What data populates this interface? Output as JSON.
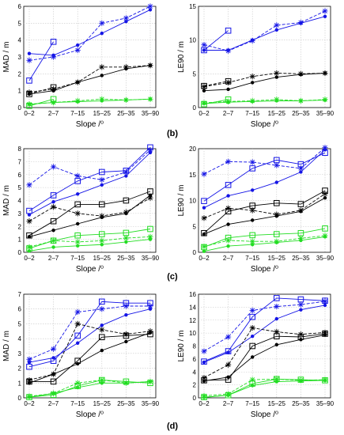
{
  "panel_labels": [
    "(b)",
    "(c)",
    "(d)"
  ],
  "colors": {
    "blue": "#1515e6",
    "black": "#000000",
    "green": "#22dd22"
  },
  "chart_data": [
    {
      "type": "line",
      "panel": "(b)",
      "xlabel": "Slope /⁰",
      "ylabel": "MAD / m",
      "categories": [
        "0–2",
        "2–7",
        "7–15",
        "15–25",
        "25–35",
        "35–90"
      ],
      "ylim": [
        0,
        6
      ],
      "yticks": [
        0,
        1,
        2,
        3,
        4,
        5,
        6
      ],
      "grid": true,
      "series": [
        {
          "color": "blue",
          "marker": "square",
          "dash": "solid",
          "values": [
            1.6,
            3.9,
            null,
            null,
            null,
            null
          ]
        },
        {
          "color": "blue",
          "marker": "dot",
          "dash": "solid",
          "values": [
            3.2,
            3.1,
            3.7,
            4.4,
            5.1,
            5.8
          ]
        },
        {
          "color": "blue",
          "marker": "star",
          "dash": "dashed",
          "values": [
            2.8,
            3.0,
            3.4,
            5.0,
            5.3,
            6.0
          ]
        },
        {
          "color": "black",
          "marker": "square",
          "dash": "dashed",
          "values": [
            0.8,
            1.2,
            null,
            null,
            null,
            null
          ]
        },
        {
          "color": "black",
          "marker": "dot",
          "dash": "solid",
          "values": [
            0.8,
            1.0,
            1.5,
            1.9,
            2.3,
            2.5
          ]
        },
        {
          "color": "black",
          "marker": "star",
          "dash": "dashed",
          "values": [
            0.9,
            1.1,
            1.5,
            2.4,
            2.4,
            2.5
          ]
        },
        {
          "color": "green",
          "marker": "square",
          "dash": "solid",
          "values": [
            0.1,
            0.5,
            null,
            null,
            null,
            null
          ]
        },
        {
          "color": "green",
          "marker": "dot",
          "dash": "solid",
          "values": [
            0.2,
            0.3,
            0.35,
            0.4,
            0.45,
            0.5
          ]
        },
        {
          "color": "green",
          "marker": "star",
          "dash": "dashed",
          "values": [
            0.2,
            0.3,
            0.4,
            0.5,
            0.45,
            0.5
          ]
        }
      ]
    },
    {
      "type": "line",
      "panel": "(b)",
      "xlabel": "Slope /⁰",
      "ylabel": "LE90 / m",
      "categories": [
        "0–2",
        "2–7",
        "7–15",
        "15–25",
        "25–35",
        "35–90"
      ],
      "ylim": [
        0,
        15
      ],
      "yticks": [
        0,
        5,
        10,
        15
      ],
      "grid": true,
      "series": [
        {
          "color": "blue",
          "marker": "square",
          "dash": "solid",
          "values": [
            8.5,
            11.4,
            null,
            null,
            null,
            null
          ]
        },
        {
          "color": "blue",
          "marker": "dot",
          "dash": "solid",
          "values": [
            8.5,
            8.5,
            10.0,
            11.5,
            12.5,
            13.5
          ]
        },
        {
          "color": "blue",
          "marker": "star",
          "dash": "dashed",
          "values": [
            9.3,
            8.4,
            9.9,
            12.2,
            12.6,
            14.3
          ]
        },
        {
          "color": "black",
          "marker": "square",
          "dash": "dashed",
          "values": [
            3.2,
            3.9,
            null,
            null,
            null,
            null
          ]
        },
        {
          "color": "black",
          "marker": "dot",
          "dash": "solid",
          "values": [
            2.5,
            2.7,
            3.7,
            4.5,
            4.9,
            5.1
          ]
        },
        {
          "color": "black",
          "marker": "star",
          "dash": "dashed",
          "values": [
            3.1,
            3.7,
            4.6,
            5.1,
            5.0,
            5.1
          ]
        },
        {
          "color": "green",
          "marker": "square",
          "dash": "solid",
          "values": [
            0.5,
            1.2,
            null,
            null,
            null,
            null
          ]
        },
        {
          "color": "green",
          "marker": "dot",
          "dash": "solid",
          "values": [
            0.6,
            0.8,
            0.9,
            1.0,
            1.0,
            1.1
          ]
        },
        {
          "color": "green",
          "marker": "star",
          "dash": "dashed",
          "values": [
            0.7,
            0.9,
            1.0,
            1.2,
            1.0,
            1.2
          ]
        }
      ]
    },
    {
      "type": "line",
      "panel": "(c)",
      "xlabel": "Slope /⁰",
      "ylabel": "MAD / m",
      "categories": [
        "0–2",
        "2–7",
        "7–15",
        "15–25",
        "25–35",
        "35–90"
      ],
      "ylim": [
        0,
        8
      ],
      "yticks": [
        0,
        1,
        2,
        3,
        4,
        5,
        6,
        7,
        8
      ],
      "grid": true,
      "series": [
        {
          "color": "blue",
          "marker": "square",
          "dash": "solid",
          "values": [
            3.2,
            4.4,
            5.5,
            6.2,
            6.3,
            8.1
          ]
        },
        {
          "color": "blue",
          "marker": "dot",
          "dash": "solid",
          "values": [
            2.9,
            3.9,
            4.5,
            5.2,
            5.9,
            7.7
          ]
        },
        {
          "color": "blue",
          "marker": "star",
          "dash": "dashed",
          "values": [
            5.2,
            6.6,
            5.9,
            5.6,
            6.2,
            7.9
          ]
        },
        {
          "color": "black",
          "marker": "square",
          "dash": "solid",
          "values": [
            1.3,
            2.4,
            3.7,
            3.7,
            4.0,
            4.7
          ]
        },
        {
          "color": "black",
          "marker": "dot",
          "dash": "solid",
          "values": [
            1.2,
            1.7,
            2.2,
            2.7,
            3.0,
            4.4
          ]
        },
        {
          "color": "black",
          "marker": "star",
          "dash": "dashed",
          "values": [
            2.4,
            3.5,
            3.0,
            2.8,
            3.1,
            4.2
          ]
        },
        {
          "color": "green",
          "marker": "square",
          "dash": "solid",
          "values": [
            0.3,
            0.9,
            1.3,
            1.4,
            1.5,
            1.8
          ]
        },
        {
          "color": "green",
          "marker": "dot",
          "dash": "solid",
          "values": [
            0.1,
            0.4,
            0.5,
            0.6,
            0.8,
            1.0
          ]
        },
        {
          "color": "green",
          "marker": "star",
          "dash": "dashed",
          "values": [
            0.4,
            0.9,
            0.8,
            0.9,
            1.1,
            1.2
          ]
        }
      ]
    },
    {
      "type": "line",
      "panel": "(c)",
      "xlabel": "Slope /⁰",
      "ylabel": "LE90 / m",
      "categories": [
        "0–2",
        "2–7",
        "7–15",
        "15–25",
        "25–35",
        "35–90"
      ],
      "ylim": [
        0,
        20
      ],
      "yticks": [
        0,
        5,
        10,
        15,
        20
      ],
      "grid": true,
      "series": [
        {
          "color": "blue",
          "marker": "square",
          "dash": "solid",
          "values": [
            9.9,
            13.0,
            16.2,
            17.8,
            17.0,
            19.2
          ]
        },
        {
          "color": "blue",
          "marker": "dot",
          "dash": "solid",
          "values": [
            8.6,
            10.9,
            12.0,
            13.5,
            15.5,
            19.8
          ]
        },
        {
          "color": "blue",
          "marker": "star",
          "dash": "dashed",
          "values": [
            15.1,
            17.5,
            17.4,
            16.8,
            16.2,
            20.2
          ]
        },
        {
          "color": "black",
          "marker": "square",
          "dash": "solid",
          "values": [
            3.7,
            7.9,
            9.0,
            9.5,
            9.3,
            11.9
          ]
        },
        {
          "color": "black",
          "marker": "dot",
          "dash": "solid",
          "values": [
            3.5,
            5.4,
            6.2,
            7.0,
            7.9,
            10.5
          ]
        },
        {
          "color": "black",
          "marker": "star",
          "dash": "dashed",
          "values": [
            6.6,
            8.5,
            8.1,
            7.3,
            8.1,
            11.3
          ]
        },
        {
          "color": "green",
          "marker": "square",
          "dash": "solid",
          "values": [
            1.0,
            2.8,
            3.3,
            3.5,
            3.7,
            4.6
          ]
        },
        {
          "color": "green",
          "marker": "dot",
          "dash": "solid",
          "values": [
            0.2,
            1.2,
            1.5,
            1.9,
            2.3,
            3.0
          ]
        },
        {
          "color": "green",
          "marker": "star",
          "dash": "dashed",
          "values": [
            1.1,
            2.3,
            2.1,
            2.1,
            2.7,
            3.2
          ]
        }
      ]
    },
    {
      "type": "line",
      "panel": "(d)",
      "xlabel": "Slope /⁰",
      "ylabel": "MAD / m",
      "categories": [
        "0–2",
        "2–7",
        "7–15",
        "15–25",
        "25–35",
        "35–90"
      ],
      "ylim": [
        0,
        7
      ],
      "yticks": [
        0,
        1,
        2,
        3,
        4,
        5,
        6,
        7
      ],
      "grid": true,
      "series": [
        {
          "color": "blue",
          "marker": "square",
          "dash": "solid",
          "values": [
            2.1,
            2.5,
            4.2,
            6.5,
            6.4,
            6.4
          ]
        },
        {
          "color": "blue",
          "marker": "dot",
          "dash": "solid",
          "values": [
            2.4,
            2.7,
            3.7,
            4.9,
            5.6,
            6.0
          ]
        },
        {
          "color": "blue",
          "marker": "star",
          "dash": "dashed",
          "values": [
            2.6,
            3.3,
            5.8,
            6.0,
            6.2,
            6.2
          ]
        },
        {
          "color": "black",
          "marker": "square",
          "dash": "solid",
          "values": [
            1.1,
            1.1,
            2.5,
            4.1,
            4.2,
            4.3
          ]
        },
        {
          "color": "black",
          "marker": "dot",
          "dash": "solid",
          "values": [
            1.0,
            1.6,
            2.3,
            3.2,
            3.8,
            4.4
          ]
        },
        {
          "color": "black",
          "marker": "star",
          "dash": "dashed",
          "values": [
            1.2,
            1.6,
            5.0,
            4.6,
            4.3,
            4.5
          ]
        },
        {
          "color": "green",
          "marker": "square",
          "dash": "solid",
          "values": [
            0.05,
            0.2,
            0.8,
            1.2,
            1.1,
            1.0
          ]
        },
        {
          "color": "green",
          "marker": "dot",
          "dash": "solid",
          "values": [
            0.05,
            0.3,
            0.7,
            1.0,
            1.0,
            1.1
          ]
        },
        {
          "color": "green",
          "marker": "star",
          "dash": "dashed",
          "values": [
            0.1,
            0.3,
            1.0,
            1.2,
            1.0,
            1.1
          ]
        }
      ]
    },
    {
      "type": "line",
      "panel": "(d)",
      "xlabel": "Slope /⁰",
      "ylabel": "LE90 / m",
      "categories": [
        "0–2",
        "2–7",
        "7–15",
        "15–25",
        "25–35",
        "35–90"
      ],
      "ylim": [
        0,
        16
      ],
      "yticks": [
        0,
        2,
        4,
        6,
        8,
        10,
        12,
        14,
        16
      ],
      "grid": true,
      "series": [
        {
          "color": "blue",
          "marker": "square",
          "dash": "solid",
          "values": [
            5.6,
            7.2,
            12.5,
            15.4,
            15.2,
            15.0
          ]
        },
        {
          "color": "blue",
          "marker": "dot",
          "dash": "solid",
          "values": [
            5.5,
            7.0,
            9.5,
            12.2,
            13.6,
            14.3
          ]
        },
        {
          "color": "blue",
          "marker": "star",
          "dash": "dashed",
          "values": [
            7.2,
            9.4,
            13.5,
            14.1,
            14.4,
            14.9
          ]
        },
        {
          "color": "black",
          "marker": "square",
          "dash": "solid",
          "values": [
            2.7,
            2.8,
            8.0,
            9.5,
            9.4,
            9.9
          ]
        },
        {
          "color": "black",
          "marker": "dot",
          "dash": "solid",
          "values": [
            2.6,
            3.2,
            6.3,
            8.2,
            9.0,
            9.7
          ]
        },
        {
          "color": "black",
          "marker": "star",
          "dash": "dashed",
          "values": [
            3.1,
            5.1,
            10.8,
            10.2,
            9.8,
            10.1
          ]
        },
        {
          "color": "green",
          "marker": "square",
          "dash": "solid",
          "values": [
            0.1,
            0.4,
            2.2,
            2.9,
            2.8,
            2.7
          ]
        },
        {
          "color": "green",
          "marker": "dot",
          "dash": "solid",
          "values": [
            0.05,
            0.4,
            1.9,
            2.5,
            2.6,
            2.7
          ]
        },
        {
          "color": "green",
          "marker": "star",
          "dash": "dashed",
          "values": [
            0.3,
            0.6,
            2.8,
            2.9,
            2.7,
            2.8
          ]
        }
      ]
    }
  ]
}
